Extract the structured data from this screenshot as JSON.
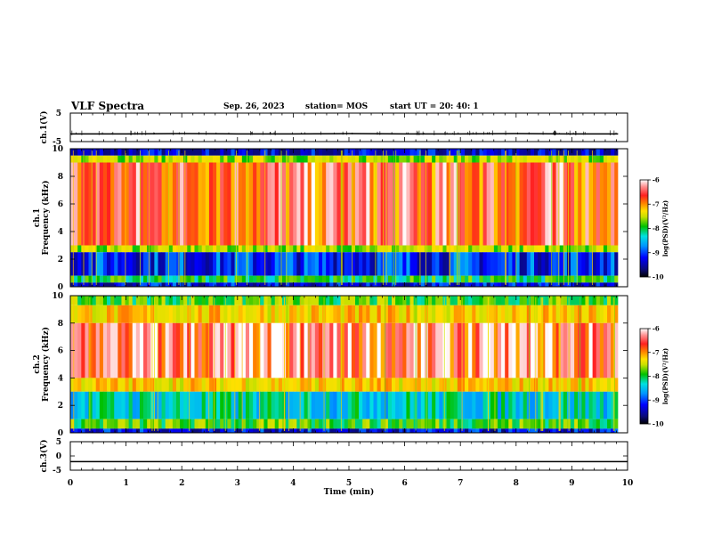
{
  "header": {
    "title": "VLF Spectra",
    "date": "Sep. 26, 2023",
    "station": "station= MOS",
    "start": "start  UT  =   20: 40: 1"
  },
  "colors": {
    "background": "#ffffff",
    "axes": "#000000",
    "colormap": [
      "#0a0a7a",
      "#0000ff",
      "#0096ff",
      "#00e0e0",
      "#00c000",
      "#c8e000",
      "#ffe000",
      "#ff8000",
      "#ff2020",
      "#ff9090",
      "#ffffff"
    ]
  },
  "chart_data": [
    {
      "type": "line",
      "panel": "ch1-waveform",
      "ylabel": "ch.1(V)",
      "ylim": [
        -5,
        5
      ],
      "yticks": [
        "5",
        "-5"
      ],
      "xlim": [
        0,
        10
      ],
      "x": [
        0,
        1,
        2,
        3,
        4,
        5,
        6,
        7,
        8,
        9,
        9.83
      ],
      "y": [
        -2.3,
        -2.3,
        -2.2,
        -2.3,
        -2.3,
        -2.2,
        -2.3,
        -2.3,
        -2.2,
        -2.3,
        -2.3
      ]
    },
    {
      "type": "heatmap",
      "panel": "ch1-spectrogram",
      "ylabel": "ch.1",
      "ylabel2": "Frequency (kHz)",
      "ylim": [
        0,
        10
      ],
      "yticks": [
        "0",
        "2",
        "4",
        "6",
        "8",
        "10"
      ],
      "xlim": [
        0,
        10
      ],
      "data_xmax": 9.83,
      "colorbar": {
        "label": "log(PSD)(V²/Hz)",
        "range": [
          -10,
          -6
        ],
        "ticks": [
          "-6",
          "-7",
          "-8",
          "-9",
          "-10"
        ]
      },
      "bands": [
        {
          "f": [
            9.5,
            10
          ],
          "level": -9.8
        },
        {
          "f": [
            9.0,
            9.5
          ],
          "level": -8.0
        },
        {
          "f": [
            3.0,
            9.0
          ],
          "level": -6.8
        },
        {
          "f": [
            2.5,
            3.0
          ],
          "level": -8.0
        },
        {
          "f": [
            0.8,
            2.5
          ],
          "level": -9.5
        },
        {
          "f": [
            0.3,
            0.8
          ],
          "level": -8.5
        },
        {
          "f": [
            0,
            0.3
          ],
          "level": -9.7
        }
      ]
    },
    {
      "type": "heatmap",
      "panel": "ch2-spectrogram",
      "ylabel": "ch.2",
      "ylabel2": "Frequency (kHz)",
      "ylim": [
        0,
        10
      ],
      "yticks": [
        "0",
        "2",
        "4",
        "6",
        "8",
        "10"
      ],
      "xlim": [
        0,
        10
      ],
      "data_xmax": 9.83,
      "colorbar": {
        "label": "log(PSD)(V²/Hz)",
        "range": [
          -10,
          -6
        ],
        "ticks": [
          "-6",
          "-7",
          "-8",
          "-9",
          "-10"
        ]
      },
      "bands": [
        {
          "f": [
            9.3,
            10
          ],
          "level": -8.3
        },
        {
          "f": [
            8.0,
            9.3
          ],
          "level": -7.6
        },
        {
          "f": [
            4.0,
            8.0
          ],
          "level": -6.6
        },
        {
          "f": [
            3.0,
            4.0
          ],
          "level": -7.6
        },
        {
          "f": [
            1.0,
            3.0
          ],
          "level": -8.8
        },
        {
          "f": [
            0.3,
            1.0
          ],
          "level": -8.3
        },
        {
          "f": [
            0,
            0.3
          ],
          "level": -9.7
        }
      ]
    },
    {
      "type": "line",
      "panel": "ch3-waveform",
      "ylabel": "ch.3(V)",
      "ylim": [
        -5,
        5
      ],
      "yticks": [
        "5",
        "0",
        "-5"
      ],
      "xlim": [
        0,
        10
      ],
      "xlabel": "Time  (min)",
      "xticks": [
        "0",
        "1",
        "2",
        "3",
        "4",
        "5",
        "6",
        "7",
        "8",
        "9",
        "10"
      ],
      "x": [
        0,
        10
      ],
      "y": [
        -2.0,
        -2.0
      ]
    }
  ]
}
